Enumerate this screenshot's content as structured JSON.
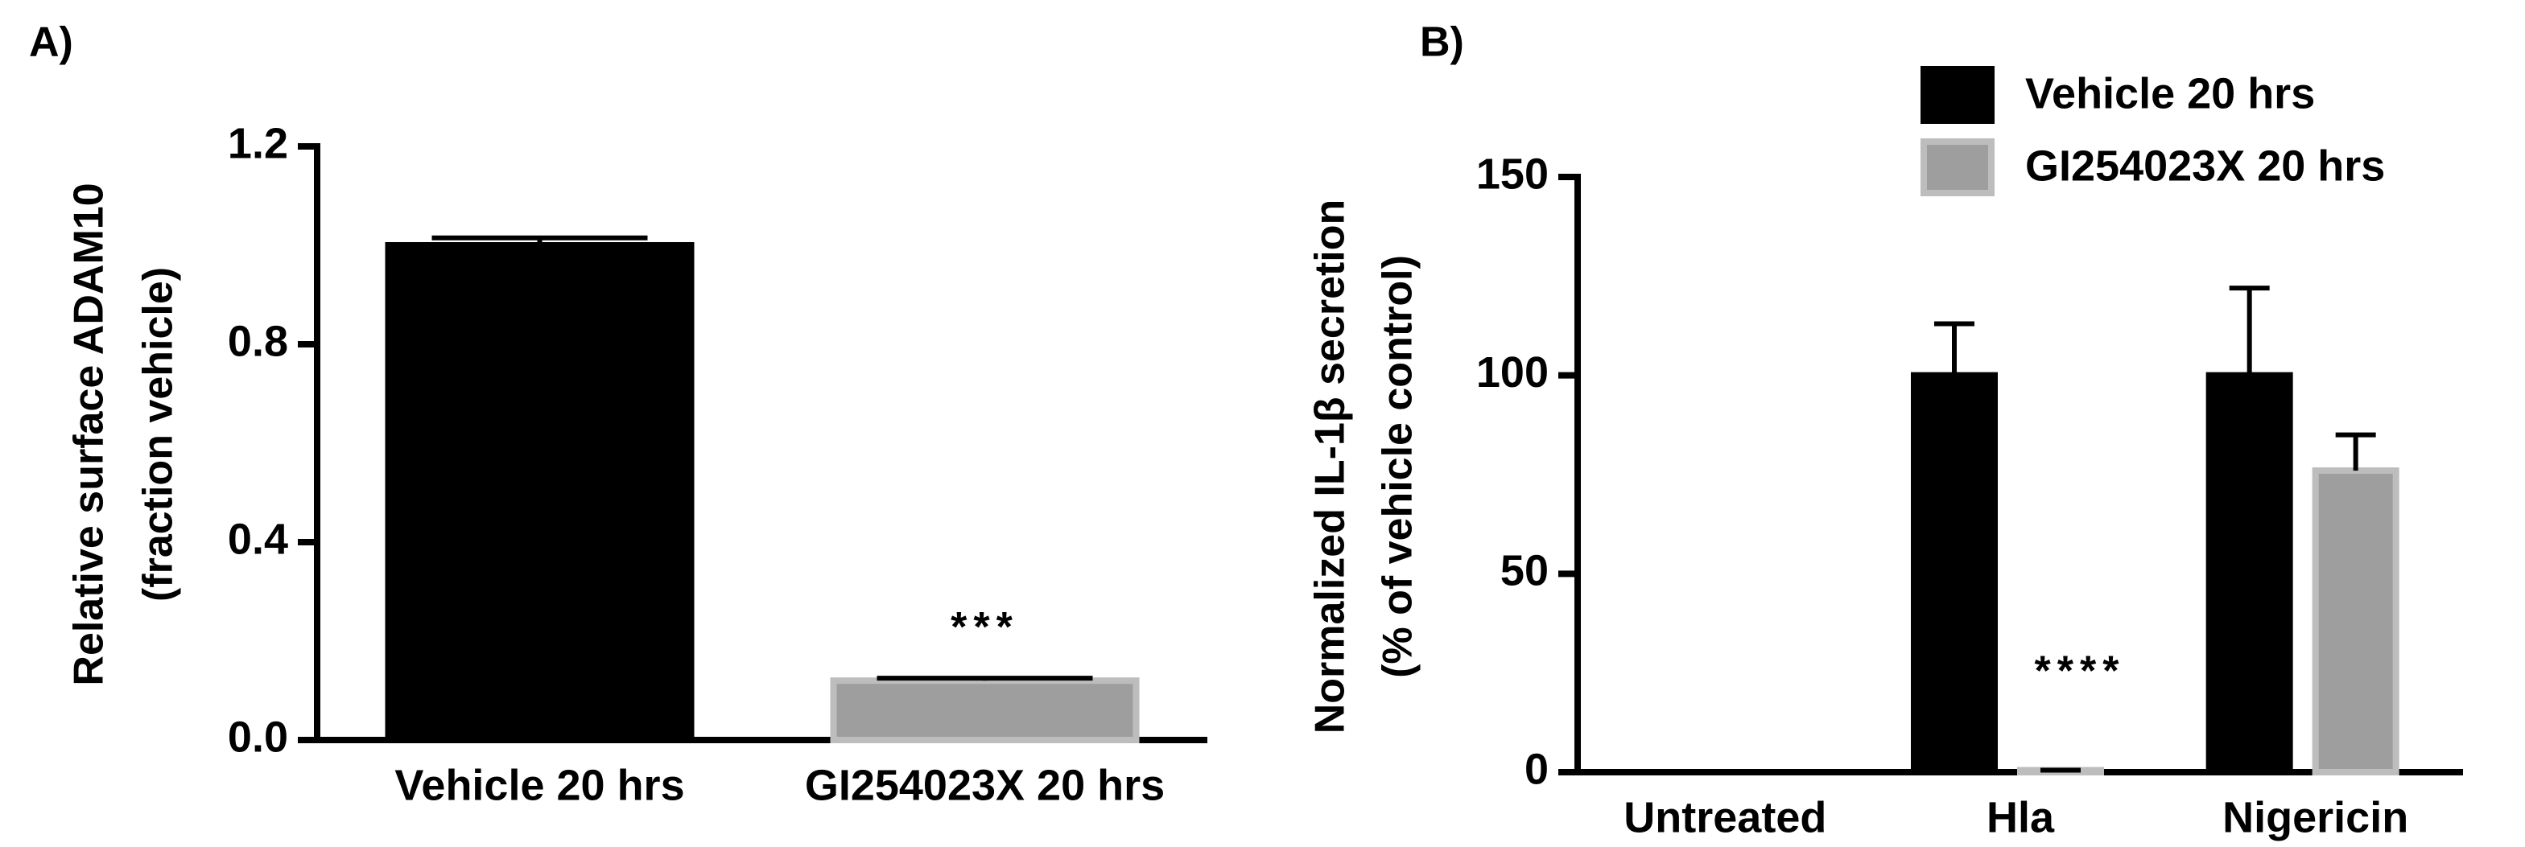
{
  "chart_data": [
    {
      "type": "bar",
      "panel": "A)",
      "ylabel": [
        "Relative surface ADAM10",
        "(fraction vehicle)"
      ],
      "categories": [
        "Vehicle 20 hrs",
        "GI254023X 20 hrs"
      ],
      "values": [
        1.0,
        0.12
      ],
      "errors": [
        0.015,
        0.005
      ],
      "colors": [
        "#000000",
        "#9e9e9e"
      ],
      "ylim": [
        0,
        1.2
      ],
      "yticks": [
        {
          "value": 0,
          "label": "0.0"
        },
        0.4,
        0.8,
        1.2
      ],
      "annotation": "***"
    },
    {
      "type": "grouped-bar",
      "panel": "B)",
      "ylabel": [
        "Normalized IL-1β secretion",
        "(% of vehicle control)"
      ],
      "categories": [
        "Untreated",
        "Hla",
        "Nigericin"
      ],
      "series": [
        {
          "name": "Vehicle 20 hrs",
          "color": "#000000",
          "values": [
            null,
            100,
            100
          ],
          "errors": [
            null,
            13,
            22
          ]
        },
        {
          "name": "GI254023X 20 hrs",
          "color": "#9e9e9e",
          "values": [
            null,
            0.5,
            76
          ],
          "errors": [
            null,
            0,
            9
          ]
        }
      ],
      "ylim": [
        0,
        150
      ],
      "yticks": [
        0,
        50,
        100,
        150
      ],
      "legend": "top-right",
      "annotation": "****"
    }
  ]
}
